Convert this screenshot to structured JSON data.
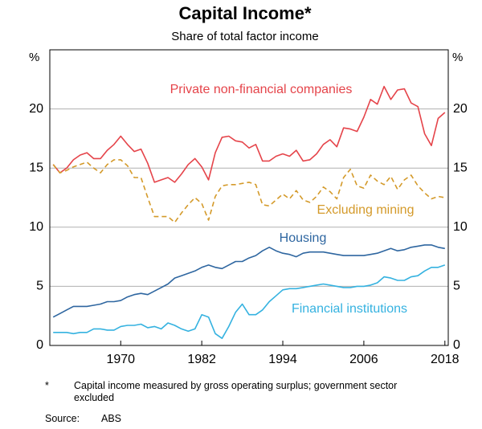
{
  "chart_data": {
    "type": "line",
    "title": "Capital Income*",
    "subtitle": "Share of total factor income",
    "y_label": "%",
    "y2_label": "%",
    "x": [
      1960,
      1961,
      1962,
      1963,
      1964,
      1965,
      1966,
      1967,
      1968,
      1969,
      1970,
      1971,
      1972,
      1973,
      1974,
      1975,
      1976,
      1977,
      1978,
      1979,
      1980,
      1981,
      1982,
      1983,
      1984,
      1985,
      1986,
      1987,
      1988,
      1989,
      1990,
      1991,
      1992,
      1993,
      1994,
      1995,
      1996,
      1997,
      1998,
      1999,
      2000,
      2001,
      2002,
      2003,
      2004,
      2005,
      2006,
      2007,
      2008,
      2009,
      2010,
      2011,
      2012,
      2013,
      2014,
      2015,
      2016,
      2017,
      2018
    ],
    "xlim": [
      1959.5,
      2018.5
    ],
    "xticks": [
      1970,
      1982,
      1994,
      2006,
      2018
    ],
    "ylim": [
      0,
      25
    ],
    "yticks": [
      0,
      5,
      10,
      15,
      20
    ],
    "grid": true,
    "series": [
      {
        "name": "Private non-financial companies",
        "color": "#e5444a",
        "dashed": false,
        "values": [
          15.3,
          14.6,
          15.0,
          15.7,
          16.1,
          16.3,
          15.8,
          15.8,
          16.5,
          17.0,
          17.7,
          17.0,
          16.4,
          16.6,
          15.4,
          13.8,
          14.0,
          14.2,
          13.8,
          14.5,
          15.3,
          15.8,
          15.1,
          14.0,
          16.3,
          17.6,
          17.7,
          17.3,
          17.2,
          16.7,
          17.0,
          15.6,
          15.6,
          16.0,
          16.2,
          16.0,
          16.5,
          15.6,
          15.7,
          16.2,
          17.0,
          17.4,
          16.8,
          18.4,
          18.3,
          18.1,
          19.3,
          20.8,
          20.4,
          21.9,
          20.8,
          21.6,
          21.7,
          20.5,
          20.2,
          17.9,
          16.9,
          19.2,
          19.7
        ]
      },
      {
        "name": "Excluding mining",
        "color": "#d49a2a",
        "dashed": true,
        "values": [
          15.3,
          14.6,
          14.8,
          15.1,
          15.3,
          15.5,
          15.0,
          14.6,
          15.3,
          15.7,
          15.7,
          15.2,
          14.2,
          14.2,
          12.5,
          10.9,
          10.9,
          10.9,
          10.4,
          11.2,
          11.9,
          12.5,
          12.0,
          10.6,
          12.6,
          13.5,
          13.6,
          13.6,
          13.7,
          13.8,
          13.6,
          11.9,
          11.8,
          12.3,
          12.8,
          12.4,
          13.1,
          12.3,
          12.1,
          12.6,
          13.4,
          13.0,
          12.4,
          14.2,
          14.9,
          13.5,
          13.3,
          14.4,
          13.9,
          13.6,
          14.3,
          13.2,
          14.0,
          14.4,
          13.5,
          12.9,
          12.4,
          12.6,
          12.5
        ]
      },
      {
        "name": "Housing",
        "color": "#2e66a0",
        "dashed": false,
        "values": [
          2.4,
          2.7,
          3.0,
          3.3,
          3.3,
          3.3,
          3.4,
          3.5,
          3.7,
          3.7,
          3.8,
          4.1,
          4.3,
          4.4,
          4.3,
          4.6,
          4.9,
          5.2,
          5.7,
          5.9,
          6.1,
          6.3,
          6.6,
          6.8,
          6.6,
          6.5,
          6.8,
          7.1,
          7.1,
          7.4,
          7.6,
          8.0,
          8.3,
          8.0,
          7.8,
          7.7,
          7.5,
          7.8,
          7.9,
          7.9,
          7.9,
          7.8,
          7.7,
          7.6,
          7.6,
          7.6,
          7.6,
          7.7,
          7.8,
          8.0,
          8.2,
          8.0,
          8.1,
          8.3,
          8.4,
          8.5,
          8.5,
          8.3,
          8.2
        ]
      },
      {
        "name": "Financial institutions",
        "color": "#35b2e0",
        "dashed": false,
        "values": [
          1.1,
          1.1,
          1.1,
          1.0,
          1.1,
          1.1,
          1.4,
          1.4,
          1.3,
          1.3,
          1.6,
          1.7,
          1.7,
          1.8,
          1.5,
          1.6,
          1.4,
          1.9,
          1.7,
          1.4,
          1.2,
          1.4,
          2.6,
          2.4,
          1.0,
          0.6,
          1.6,
          2.8,
          3.5,
          2.6,
          2.6,
          3.0,
          3.7,
          4.2,
          4.7,
          4.8,
          4.8,
          4.9,
          5.0,
          5.1,
          5.2,
          5.1,
          5.0,
          4.9,
          4.9,
          5.0,
          5.0,
          5.1,
          5.3,
          5.8,
          5.7,
          5.5,
          5.5,
          5.8,
          5.9,
          6.3,
          6.6,
          6.6,
          6.8
        ]
      }
    ],
    "footnote": {
      "marker": "*",
      "text": "Capital income measured by gross operating surplus; government sector excluded"
    },
    "source": {
      "label": "Source:",
      "text": "ABS"
    }
  }
}
